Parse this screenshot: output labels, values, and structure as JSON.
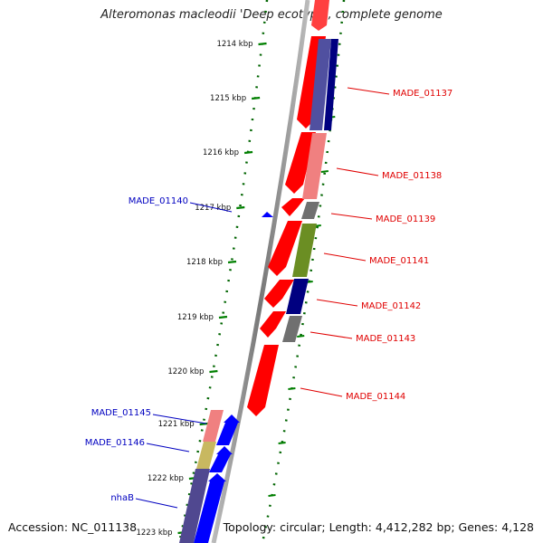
{
  "title": "Alteromonas macleodii 'Deep ecotype', complete genome",
  "footer": {
    "accession": "Accession: NC_011138",
    "summary": "Topology: circular; Length: 4,412,282 bp; Genes: 4,128"
  },
  "ticks": [
    {
      "label": "1214 kbp",
      "kbp": 1214
    },
    {
      "label": "1215 kbp",
      "kbp": 1215
    },
    {
      "label": "1216 kbp",
      "kbp": 1216
    },
    {
      "label": "1217 kbp",
      "kbp": 1217
    },
    {
      "label": "1218 kbp",
      "kbp": 1218
    },
    {
      "label": "1219 kbp",
      "kbp": 1219
    },
    {
      "label": "1220 kbp",
      "kbp": 1220
    },
    {
      "label": "1221 kbp",
      "kbp": 1221
    },
    {
      "label": "1222 kbp",
      "kbp": 1222
    },
    {
      "label": "1223 kbp",
      "kbp": 1223
    }
  ],
  "gene_labels_right": [
    {
      "name": "MADE_01137",
      "color": "#e00000"
    },
    {
      "name": "MADE_01138",
      "color": "#e00000"
    },
    {
      "name": "MADE_01139",
      "color": "#e00000"
    },
    {
      "name": "MADE_01141",
      "color": "#e00000"
    },
    {
      "name": "MADE_01142",
      "color": "#e00000"
    },
    {
      "name": "MADE_01143",
      "color": "#e00000"
    },
    {
      "name": "MADE_01144",
      "color": "#e00000"
    }
  ],
  "gene_labels_left": [
    {
      "name": "MADE_01140",
      "color": "#0000c0"
    },
    {
      "name": "MADE_01145",
      "color": "#0000c0"
    },
    {
      "name": "MADE_01146",
      "color": "#0000c0"
    },
    {
      "name": "nhaB",
      "color": "#0000c0"
    }
  ],
  "colors": {
    "forward_gene": "#ff0000",
    "reverse_gene": "#0000ff",
    "backbone": "#888888",
    "tick": "#008000",
    "cog_navy": "#000080",
    "cog_slate": "#5050a0",
    "cog_pink": "#f08080",
    "cog_grey": "#707070",
    "cog_olive": "#6b8e23",
    "cog_khaki": "#c8b860"
  }
}
